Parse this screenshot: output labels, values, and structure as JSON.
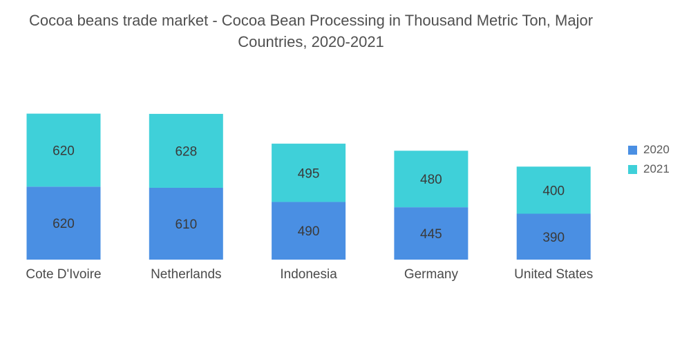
{
  "chart_data": {
    "type": "bar",
    "stacked": true,
    "title_line1": "Cocoa beans trade market - Cocoa Bean Processing in Thousand Metric Ton, Major",
    "title_line2": "Countries, 2020-2021",
    "categories": [
      "Cote D'Ivoire",
      "Netherlands",
      "Indonesia",
      "Germany",
      "United States"
    ],
    "series": [
      {
        "name": "2020",
        "color": "#4a8fe3",
        "values": [
          620,
          610,
          490,
          445,
          390
        ]
      },
      {
        "name": "2021",
        "color": "#3fd0d9",
        "values": [
          620,
          628,
          495,
          480,
          400
        ]
      }
    ],
    "legend_position": "right",
    "grid": false,
    "data_labels": true
  }
}
